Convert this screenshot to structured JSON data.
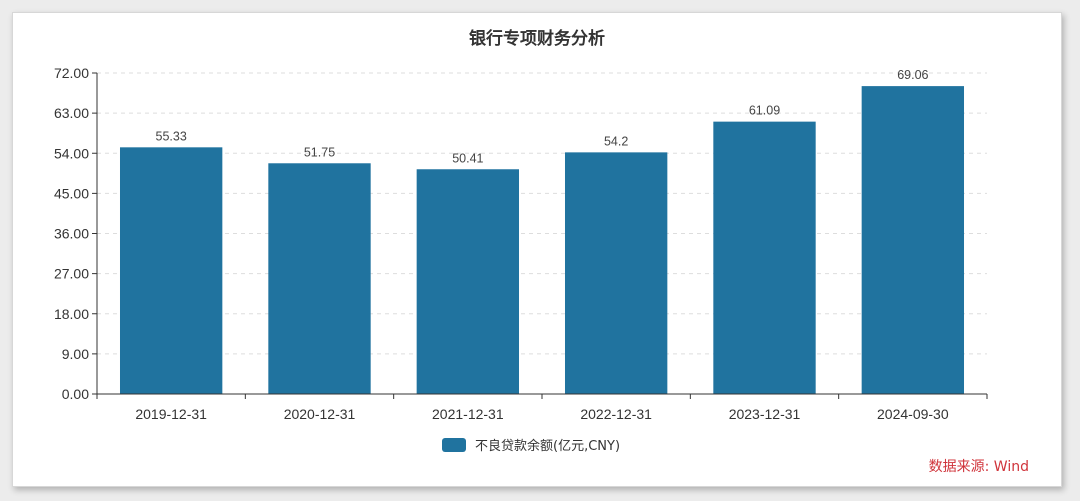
{
  "chart_data": {
    "type": "bar",
    "title": "银行专项财务分析",
    "categories": [
      "2019-12-31",
      "2020-12-31",
      "2021-12-31",
      "2022-12-31",
      "2023-12-31",
      "2024-09-30"
    ],
    "series": [
      {
        "name": "不良贷款余额(亿元,CNY)",
        "values": [
          55.33,
          51.75,
          50.41,
          54.2,
          61.09,
          69.06
        ],
        "value_labels": [
          "55.33",
          "51.75",
          "50.41",
          "54.2",
          "61.09",
          "69.06"
        ],
        "color": "#20739f"
      }
    ],
    "y_ticks": [
      "0.00",
      "9.00",
      "18.00",
      "27.00",
      "36.00",
      "45.00",
      "54.00",
      "63.00",
      "72.00"
    ],
    "ylim": [
      0,
      72
    ],
    "grid": true,
    "legend_position": "bottom-center"
  },
  "source_label": "数据来源: Wind",
  "colors": {
    "bar": "#20739f",
    "source": "#d0343b",
    "grid": "#dddddd",
    "axis": "#333333"
  }
}
